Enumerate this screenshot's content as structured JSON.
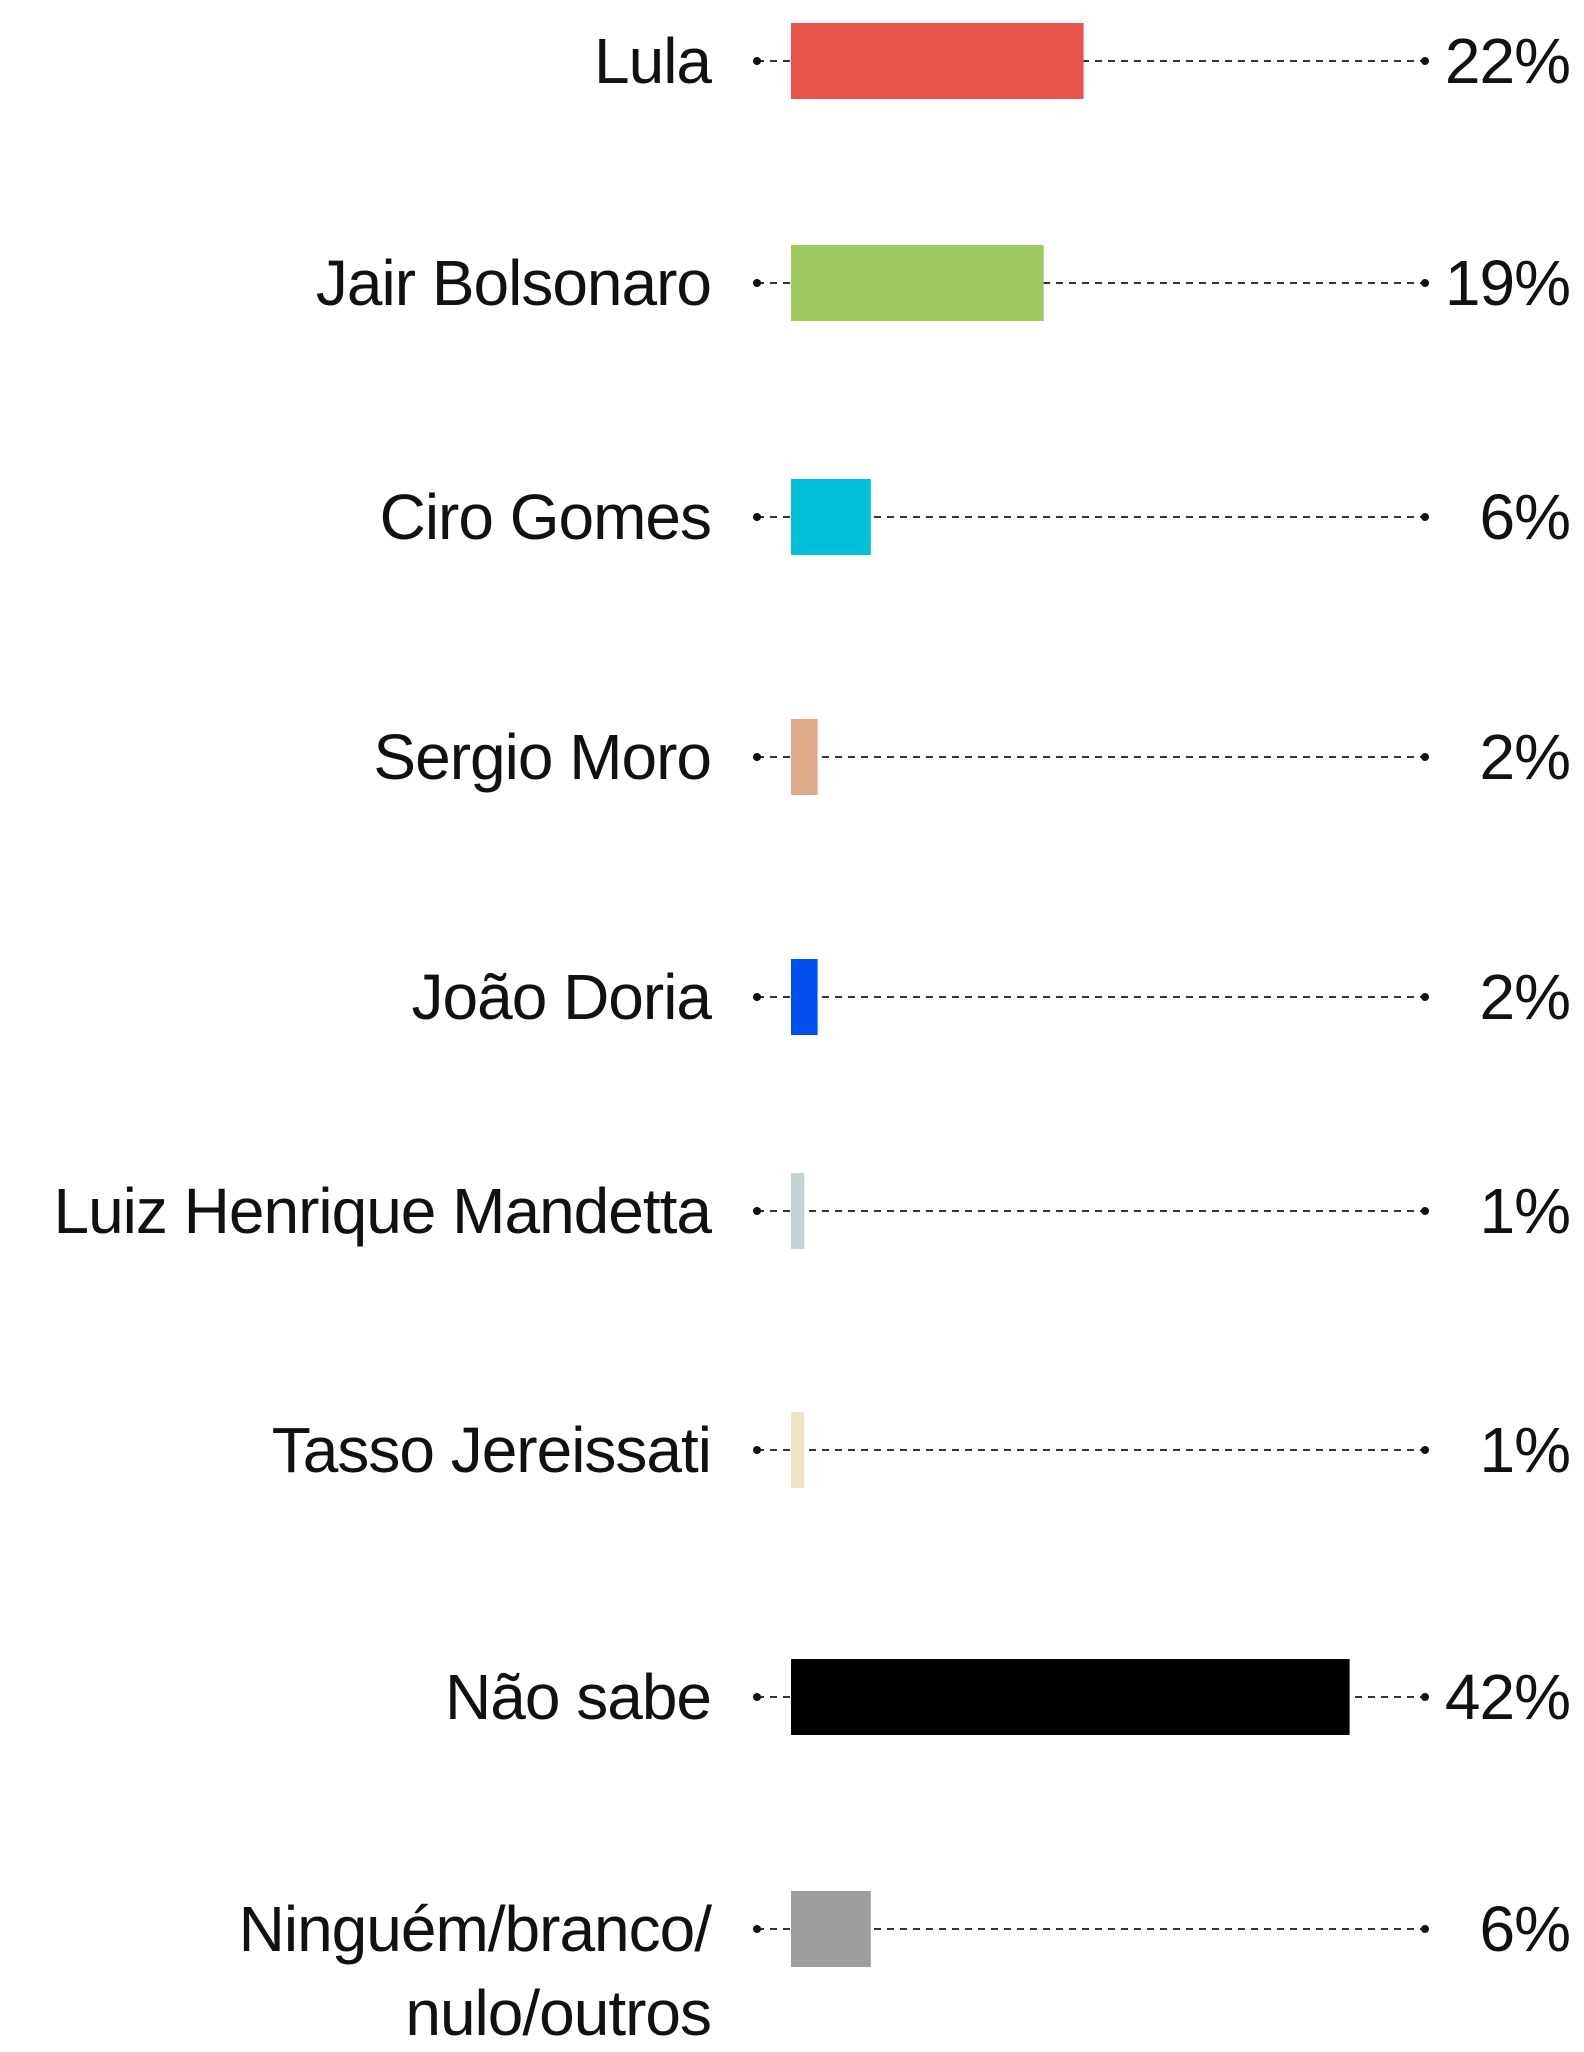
{
  "chart_data": {
    "type": "bar",
    "orientation": "horizontal",
    "categories": [
      "Lula",
      "Jair Bolsonaro",
      "Ciro Gomes",
      "Sergio Moro",
      "João Doria",
      "Luiz Henrique Mandetta",
      "Tasso Jereissati",
      "Não sabe",
      "Ninguém/branco/\nnulo/outros"
    ],
    "values": [
      22,
      19,
      6,
      2,
      2,
      1,
      1,
      42,
      6
    ],
    "value_labels": [
      "22%",
      "19%",
      "6%",
      "2%",
      "2%",
      "1%",
      "1%",
      "42%",
      "6%"
    ],
    "colors": [
      "#e8534a",
      "#9dc95f",
      "#00c0d8",
      "#dfaa8a",
      "#0050f0",
      "#c5d3d6",
      "#efe3c6",
      "#000000",
      "#9e9e9e"
    ]
  }
}
